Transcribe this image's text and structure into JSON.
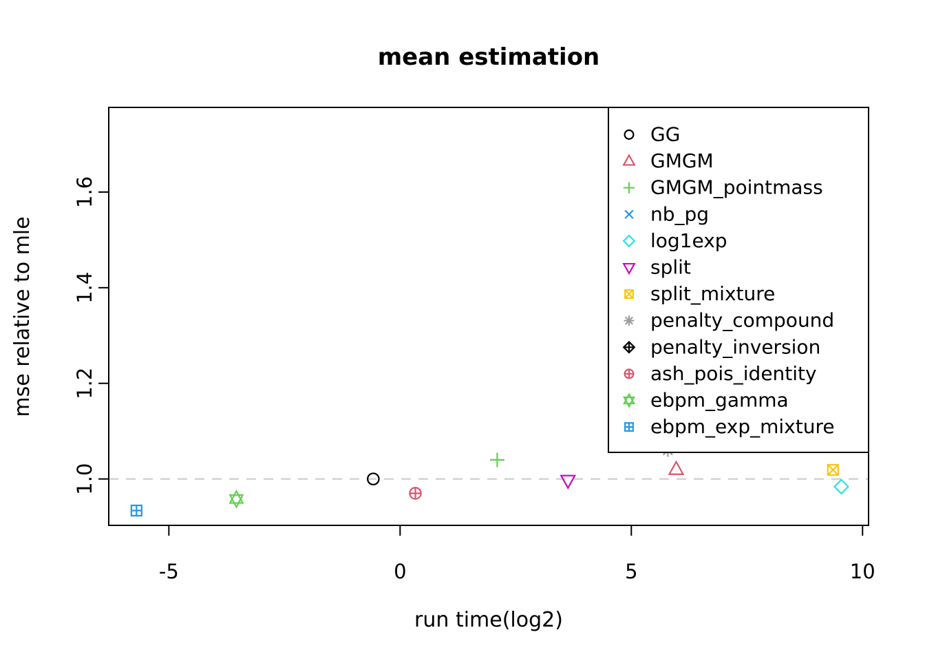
{
  "page": {
    "background": "#ffffff"
  },
  "chart_data": {
    "type": "scatter",
    "title": "mean estimation",
    "xlabel": "run time(log2)",
    "ylabel": "mse relative to mle",
    "xlim": [
      -6.3,
      10.13
    ],
    "ylim": [
      0.903,
      1.777
    ],
    "x_ticks": [
      "-5",
      "0",
      "5",
      "10"
    ],
    "x_tick_values": [
      -5,
      0,
      5,
      10
    ],
    "y_ticks": [
      "1.0",
      "1.2",
      "1.4",
      "1.6"
    ],
    "y_tick_values": [
      1.0,
      1.2,
      1.4,
      1.6
    ],
    "grid": false,
    "reference_line": {
      "y": 1.0,
      "style": "dashed",
      "color": "#D2D2D2"
    },
    "legend_position": "top-right",
    "series": [
      {
        "name": "GG",
        "marker": "circle",
        "color": "#000000",
        "point": {
          "x": -0.58,
          "y": 1.0
        }
      },
      {
        "name": "GMGM",
        "marker": "triangle-up",
        "color": "#DF536B",
        "point": {
          "x": 5.97,
          "y": 1.02
        }
      },
      {
        "name": "GMGM_pointmass",
        "marker": "plus",
        "color": "#61D04F",
        "point": {
          "x": 2.1,
          "y": 1.04
        }
      },
      {
        "name": "nb_pg",
        "marker": "x",
        "color": "#2297E6",
        "point": null
      },
      {
        "name": "log1exp",
        "marker": "diamond",
        "color": "#28E2E5",
        "point": {
          "x": 9.54,
          "y": 0.984
        }
      },
      {
        "name": "split",
        "marker": "triangle-down",
        "color": "#CD0BBC",
        "point": {
          "x": 3.63,
          "y": 0.997
        }
      },
      {
        "name": "split_mixture",
        "marker": "square-x",
        "color": "#F5C710",
        "point": {
          "x": 9.36,
          "y": 1.019
        }
      },
      {
        "name": "penalty_compound",
        "marker": "asterisk",
        "color": "#9E9E9E",
        "point": {
          "x": 5.79,
          "y": 1.06
        }
      },
      {
        "name": "penalty_inversion",
        "marker": "diamond-plus",
        "color": "#000000",
        "point": null
      },
      {
        "name": "ash_pois_identity",
        "marker": "circle-plus",
        "color": "#DF536B",
        "point": {
          "x": 0.33,
          "y": 0.97
        }
      },
      {
        "name": "ebpm_gamma",
        "marker": "star-of-david",
        "color": "#61D04F",
        "point": {
          "x": -3.54,
          "y": 0.958
        }
      },
      {
        "name": "ebpm_exp_mixture",
        "marker": "square-plus",
        "color": "#2297E6",
        "point": {
          "x": -5.7,
          "y": 0.934
        }
      }
    ]
  }
}
